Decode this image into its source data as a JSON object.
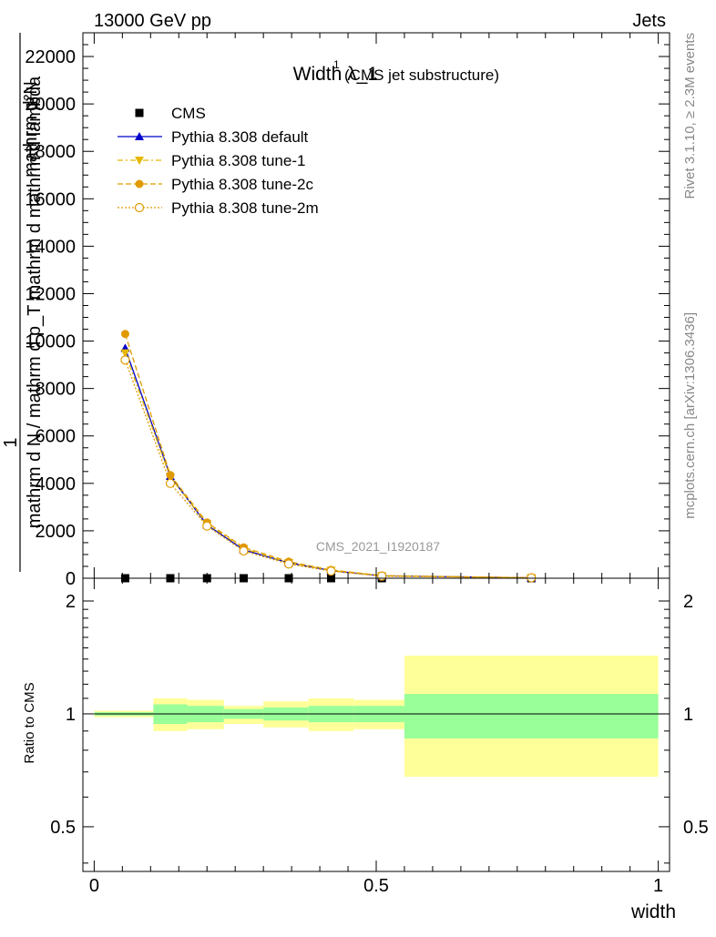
{
  "header": {
    "left": "13000 GeV pp",
    "right": "Jets"
  },
  "side_labels": {
    "rivet": "Rivet 3.1.10, ≥ 2.3M events",
    "mcplots": "mcplots.cern.ch [arXiv:1306.3436]"
  },
  "watermark": "CMS_2021_I1920187",
  "chart_data": [
    {
      "type": "line",
      "title": "Width λ_1",
      "title_sup": "1",
      "subtitle": "(CMS jet substructure)",
      "ylabel_top": "mathrm d²N",
      "ylabel_main": "mathrm d N / mathrm d p_T mathrm d mathrm d lambda",
      "ylabel_one": "1",
      "ylim": [
        0,
        23000
      ],
      "y_ticks": [
        0,
        2000,
        4000,
        6000,
        8000,
        10000,
        12000,
        14000,
        16000,
        18000,
        20000,
        22000
      ],
      "y_tick_labels": [
        "0",
        "2000",
        "4000",
        "6000",
        "8000",
        "10000",
        "12000",
        "14000",
        "16000",
        "18000",
        "20000",
        "22000"
      ],
      "xlim": [
        -0.02,
        1.02
      ],
      "legend_position": "top-left",
      "series": [
        {
          "name": "CMS",
          "marker": "square",
          "color": "#000000",
          "x": [
            0.055,
            0.135,
            0.2,
            0.265,
            0.345,
            0.42,
            0.51,
            0.775
          ],
          "y": [
            0,
            0,
            0,
            0,
            0,
            0,
            0,
            0
          ]
        },
        {
          "name": "Pythia 8.308 default",
          "marker": "triangle-up",
          "color": "#0000cc",
          "dash": "",
          "x": [
            0.055,
            0.135,
            0.2,
            0.265,
            0.345,
            0.42,
            0.51,
            0.775
          ],
          "y": [
            9700,
            4300,
            2250,
            1200,
            650,
            320,
            100,
            20
          ]
        },
        {
          "name": "Pythia 8.308 tune-1",
          "marker": "triangle-down",
          "color": "#e6b800",
          "dash": "6,3,2,3",
          "x": [
            0.055,
            0.135,
            0.2,
            0.265,
            0.345,
            0.42,
            0.51,
            0.775
          ],
          "y": [
            9500,
            4250,
            2300,
            1250,
            650,
            330,
            100,
            20
          ]
        },
        {
          "name": "Pythia 8.308 tune-2c",
          "marker": "circle-filled",
          "color": "#e09a00",
          "dash": "6,3",
          "x": [
            0.055,
            0.135,
            0.2,
            0.265,
            0.345,
            0.42,
            0.51,
            0.775
          ],
          "y": [
            10300,
            4350,
            2350,
            1300,
            700,
            350,
            110,
            20
          ]
        },
        {
          "name": "Pythia 8.308 tune-2m",
          "marker": "circle-open",
          "color": "#e09a00",
          "dash": "2,2",
          "x": [
            0.055,
            0.135,
            0.2,
            0.265,
            0.345,
            0.42,
            0.51,
            0.775
          ],
          "y": [
            9200,
            4000,
            2200,
            1150,
            600,
            300,
            90,
            20
          ]
        }
      ]
    },
    {
      "type": "area",
      "ylabel": "Ratio to CMS",
      "xlabel": "width",
      "ylim": [
        0.38,
        2.3
      ],
      "y_ticks": [
        0.5,
        1,
        2
      ],
      "y_tick_labels": [
        "0.5",
        "1",
        "2"
      ],
      "x_ticks": [
        0,
        0.5,
        1
      ],
      "x_tick_labels": [
        "0",
        "0.5",
        "1"
      ],
      "bands": {
        "bin_edges": [
          0,
          0.105,
          0.165,
          0.23,
          0.3,
          0.38,
          0.46,
          0.55,
          1.0
        ],
        "inner_color": "#99ff99",
        "outer_color": "#ffff99",
        "inner_low": [
          0.99,
          0.94,
          0.95,
          0.97,
          0.96,
          0.95,
          0.95,
          0.86
        ],
        "inner_high": [
          1.01,
          1.06,
          1.05,
          1.03,
          1.04,
          1.05,
          1.05,
          1.13
        ],
        "outer_low": [
          0.98,
          0.9,
          0.91,
          0.94,
          0.92,
          0.9,
          0.91,
          0.68
        ],
        "outer_high": [
          1.02,
          1.1,
          1.09,
          1.05,
          1.08,
          1.1,
          1.09,
          1.43
        ]
      },
      "reference_line": 1
    }
  ]
}
